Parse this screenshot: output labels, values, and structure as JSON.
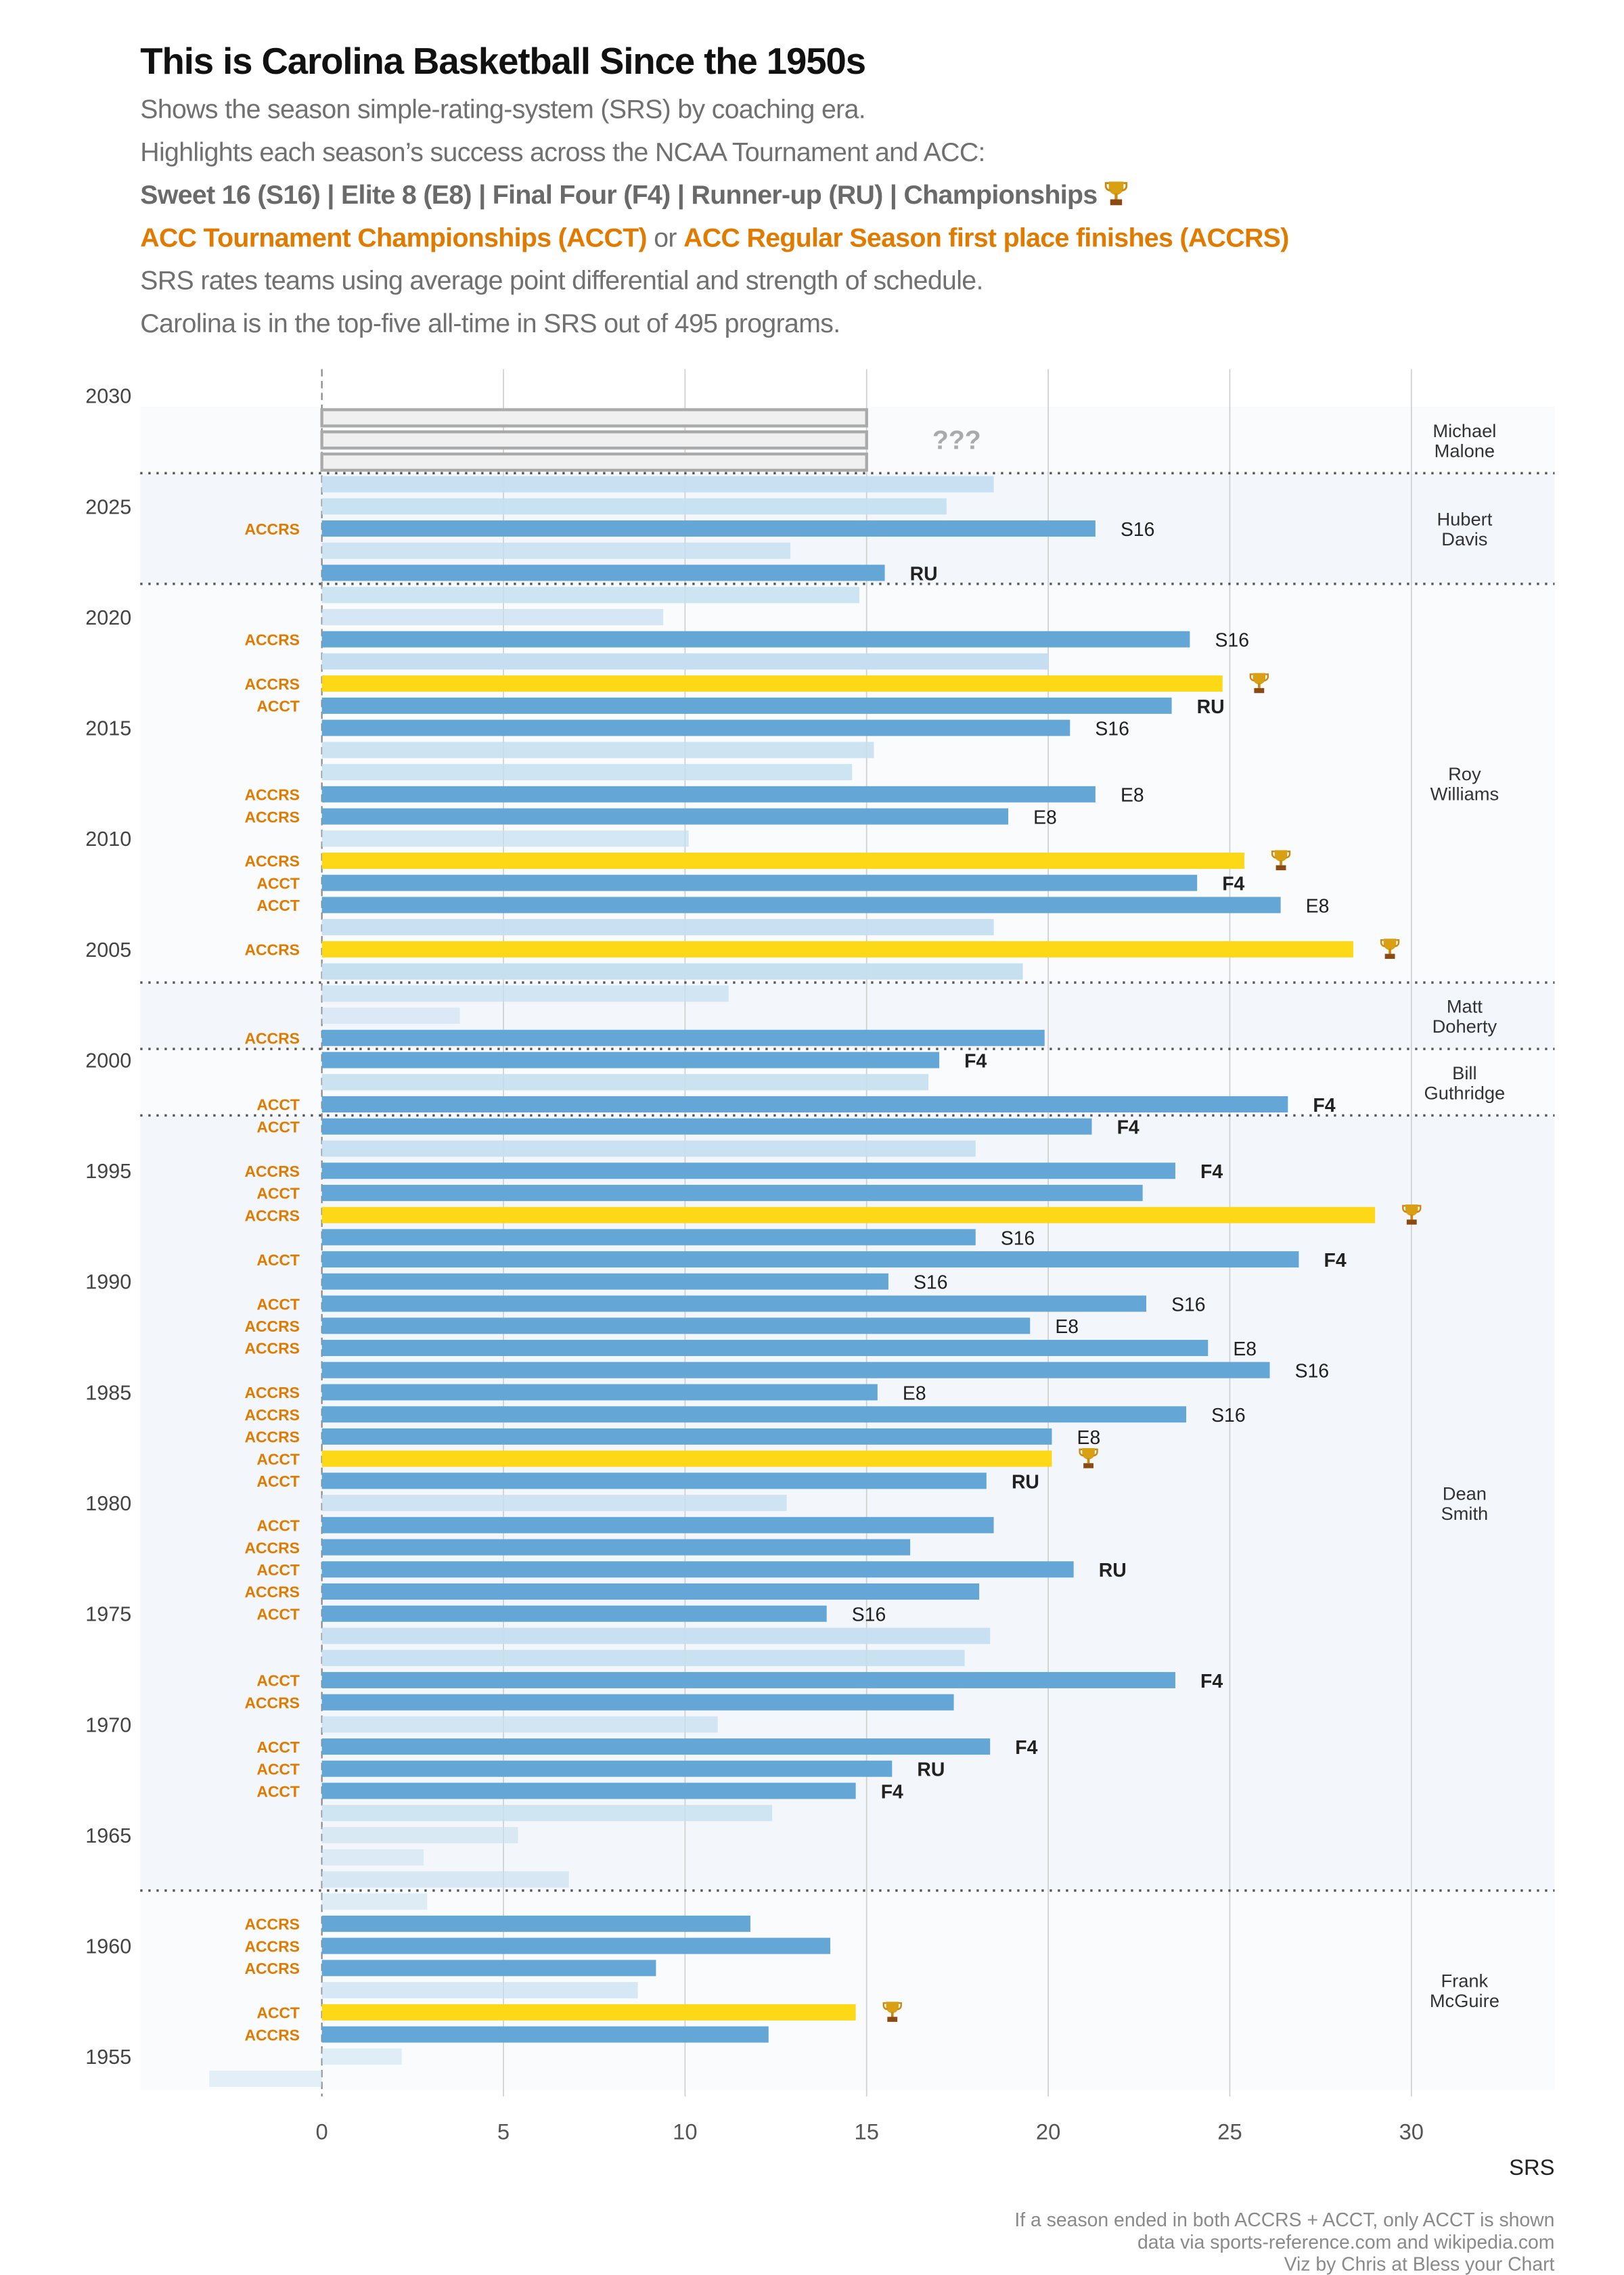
{
  "header": {
    "title": "This is Carolina Basketball Since the 1950s",
    "line1": "Shows the season simple-rating-system (SRS) by coaching era.",
    "line2": "Highlights each season’s success across the NCAA Tournament and ACC:",
    "line3": "Sweet 16 (S16) | Elite 8 (E8) | Final Four (F4) | Runner-up (RU) | Championships",
    "line4a": "ACC Tournament Championships (ACCT)",
    "line4b": " or ",
    "line4c": "ACC Regular Season first place finishes (ACCRS)",
    "line5": "SRS rates teams using average point differential and strength of schedule.",
    "line6": "Carolina is in the top-five all-time in SRS out of 495 programs."
  },
  "footer": {
    "note1": "If a season ended in both ACCRS + ACCT, only ACCT is shown",
    "note2": "data via sports-reference.com and wikipedia.com",
    "note3": "Viz by Chris at Bless your Chart"
  },
  "colors": {
    "bar": "#64a7d6",
    "champion": "#fcd817",
    "light": "#c6dff0",
    "acc": "#e07b00",
    "placeholder": "#f0f0f0"
  },
  "chart_data": {
    "type": "bar",
    "orientation": "horizontal",
    "xlabel": "SRS",
    "xlim": [
      -5,
      34
    ],
    "xticks": [
      0,
      5,
      10,
      15,
      20,
      25,
      30
    ],
    "yticks": [
      2030,
      2025,
      2020,
      2015,
      2010,
      2005,
      2000,
      1995,
      1990,
      1985,
      1980,
      1975,
      1970,
      1965,
      1960,
      1955
    ],
    "placeholder": {
      "years": [
        2029,
        2028,
        2027
      ],
      "value": 15,
      "label": "???"
    },
    "coaches": [
      {
        "name": "Michael\nMalone",
        "start": 2027,
        "end": 2029
      },
      {
        "name": "Hubert\nDavis",
        "start": 2022,
        "end": 2026
      },
      {
        "name": "Roy\nWilliams",
        "start": 2004,
        "end": 2021
      },
      {
        "name": "Matt\nDoherty",
        "start": 2001,
        "end": 2003
      },
      {
        "name": "Bill\nGuthridge",
        "start": 1998,
        "end": 2000
      },
      {
        "name": "Dean\nSmith",
        "start": 1963,
        "end": 1997
      },
      {
        "name": "Frank\nMcGuire",
        "start": 1954,
        "end": 1962
      }
    ],
    "seasons": [
      {
        "year": 2026,
        "srs": 18.5,
        "acc": "",
        "ncaa": "",
        "champ": false
      },
      {
        "year": 2025,
        "srs": 17.2,
        "acc": "",
        "ncaa": "",
        "champ": false
      },
      {
        "year": 2024,
        "srs": 21.3,
        "acc": "ACCRS",
        "ncaa": "S16",
        "champ": false
      },
      {
        "year": 2023,
        "srs": 12.9,
        "acc": "",
        "ncaa": "",
        "champ": false
      },
      {
        "year": 2022,
        "srs": 15.5,
        "acc": "",
        "ncaa": "RU",
        "champ": false
      },
      {
        "year": 2021,
        "srs": 14.8,
        "acc": "",
        "ncaa": "",
        "champ": false
      },
      {
        "year": 2020,
        "srs": 9.4,
        "acc": "",
        "ncaa": "",
        "champ": false
      },
      {
        "year": 2019,
        "srs": 23.9,
        "acc": "ACCRS",
        "ncaa": "S16",
        "champ": false
      },
      {
        "year": 2018,
        "srs": 20.0,
        "acc": "",
        "ncaa": "",
        "champ": false
      },
      {
        "year": 2017,
        "srs": 24.8,
        "acc": "ACCRS",
        "ncaa": "",
        "champ": true
      },
      {
        "year": 2016,
        "srs": 23.4,
        "acc": "ACCT",
        "ncaa": "RU",
        "champ": false
      },
      {
        "year": 2015,
        "srs": 20.6,
        "acc": "",
        "ncaa": "S16",
        "champ": false
      },
      {
        "year": 2014,
        "srs": 15.2,
        "acc": "",
        "ncaa": "",
        "champ": false
      },
      {
        "year": 2013,
        "srs": 14.6,
        "acc": "",
        "ncaa": "",
        "champ": false
      },
      {
        "year": 2012,
        "srs": 21.3,
        "acc": "ACCRS",
        "ncaa": "E8",
        "champ": false
      },
      {
        "year": 2011,
        "srs": 18.9,
        "acc": "ACCRS",
        "ncaa": "E8",
        "champ": false
      },
      {
        "year": 2010,
        "srs": 10.1,
        "acc": "",
        "ncaa": "",
        "champ": false
      },
      {
        "year": 2009,
        "srs": 25.4,
        "acc": "ACCRS",
        "ncaa": "",
        "champ": true
      },
      {
        "year": 2008,
        "srs": 24.1,
        "acc": "ACCT",
        "ncaa": "F4",
        "champ": false
      },
      {
        "year": 2007,
        "srs": 26.4,
        "acc": "ACCT",
        "ncaa": "E8",
        "champ": false
      },
      {
        "year": 2006,
        "srs": 18.5,
        "acc": "",
        "ncaa": "",
        "champ": false
      },
      {
        "year": 2005,
        "srs": 28.4,
        "acc": "ACCRS",
        "ncaa": "",
        "champ": true
      },
      {
        "year": 2004,
        "srs": 19.3,
        "acc": "",
        "ncaa": "",
        "champ": false
      },
      {
        "year": 2003,
        "srs": 11.2,
        "acc": "",
        "ncaa": "",
        "champ": false
      },
      {
        "year": 2002,
        "srs": 3.8,
        "acc": "",
        "ncaa": "",
        "champ": false
      },
      {
        "year": 2001,
        "srs": 19.9,
        "acc": "ACCRS",
        "ncaa": "",
        "champ": false
      },
      {
        "year": 2000,
        "srs": 17.0,
        "acc": "",
        "ncaa": "F4",
        "champ": false
      },
      {
        "year": 1999,
        "srs": 16.7,
        "acc": "",
        "ncaa": "",
        "champ": false
      },
      {
        "year": 1998,
        "srs": 26.6,
        "acc": "ACCT",
        "ncaa": "F4",
        "champ": false
      },
      {
        "year": 1997,
        "srs": 21.2,
        "acc": "ACCT",
        "ncaa": "F4",
        "champ": false
      },
      {
        "year": 1996,
        "srs": 18.0,
        "acc": "",
        "ncaa": "",
        "champ": false
      },
      {
        "year": 1995,
        "srs": 23.5,
        "acc": "ACCRS",
        "ncaa": "F4",
        "champ": false
      },
      {
        "year": 1994,
        "srs": 22.6,
        "acc": "ACCT",
        "ncaa": "",
        "champ": false
      },
      {
        "year": 1993,
        "srs": 29.0,
        "acc": "ACCRS",
        "ncaa": "",
        "champ": true
      },
      {
        "year": 1992,
        "srs": 18.0,
        "acc": "",
        "ncaa": "S16",
        "champ": false
      },
      {
        "year": 1991,
        "srs": 26.9,
        "acc": "ACCT",
        "ncaa": "F4",
        "champ": false
      },
      {
        "year": 1990,
        "srs": 15.6,
        "acc": "",
        "ncaa": "S16",
        "champ": false
      },
      {
        "year": 1989,
        "srs": 22.7,
        "acc": "ACCT",
        "ncaa": "S16",
        "champ": false
      },
      {
        "year": 1988,
        "srs": 19.5,
        "acc": "ACCRS",
        "ncaa": "E8",
        "champ": false
      },
      {
        "year": 1987,
        "srs": 24.4,
        "acc": "ACCRS",
        "ncaa": "E8",
        "champ": false
      },
      {
        "year": 1986,
        "srs": 26.1,
        "acc": "",
        "ncaa": "S16",
        "champ": false
      },
      {
        "year": 1985,
        "srs": 15.3,
        "acc": "ACCRS",
        "ncaa": "E8",
        "champ": false
      },
      {
        "year": 1984,
        "srs": 23.8,
        "acc": "ACCRS",
        "ncaa": "S16",
        "champ": false
      },
      {
        "year": 1983,
        "srs": 20.1,
        "acc": "ACCRS",
        "ncaa": "E8",
        "champ": false
      },
      {
        "year": 1982,
        "srs": 20.1,
        "acc": "ACCT",
        "ncaa": "",
        "champ": true
      },
      {
        "year": 1981,
        "srs": 18.3,
        "acc": "ACCT",
        "ncaa": "RU",
        "champ": false
      },
      {
        "year": 1980,
        "srs": 12.8,
        "acc": "",
        "ncaa": "",
        "champ": false
      },
      {
        "year": 1979,
        "srs": 18.5,
        "acc": "ACCT",
        "ncaa": "",
        "champ": false
      },
      {
        "year": 1978,
        "srs": 16.2,
        "acc": "ACCRS",
        "ncaa": "",
        "champ": false
      },
      {
        "year": 1977,
        "srs": 20.7,
        "acc": "ACCT",
        "ncaa": "RU",
        "champ": false
      },
      {
        "year": 1976,
        "srs": 18.1,
        "acc": "ACCRS",
        "ncaa": "",
        "champ": false
      },
      {
        "year": 1975,
        "srs": 13.9,
        "acc": "ACCT",
        "ncaa": "S16",
        "champ": false
      },
      {
        "year": 1974,
        "srs": 18.4,
        "acc": "",
        "ncaa": "",
        "champ": false
      },
      {
        "year": 1973,
        "srs": 17.7,
        "acc": "",
        "ncaa": "",
        "champ": false
      },
      {
        "year": 1972,
        "srs": 23.5,
        "acc": "ACCT",
        "ncaa": "F4",
        "champ": false
      },
      {
        "year": 1971,
        "srs": 17.4,
        "acc": "ACCRS",
        "ncaa": "",
        "champ": false
      },
      {
        "year": 1970,
        "srs": 10.9,
        "acc": "",
        "ncaa": "",
        "champ": false
      },
      {
        "year": 1969,
        "srs": 18.4,
        "acc": "ACCT",
        "ncaa": "F4",
        "champ": false
      },
      {
        "year": 1968,
        "srs": 15.7,
        "acc": "ACCT",
        "ncaa": "RU",
        "champ": false
      },
      {
        "year": 1967,
        "srs": 14.7,
        "acc": "ACCT",
        "ncaa": "F4",
        "champ": false
      },
      {
        "year": 1966,
        "srs": 12.4,
        "acc": "",
        "ncaa": "",
        "champ": false
      },
      {
        "year": 1965,
        "srs": 5.4,
        "acc": "",
        "ncaa": "",
        "champ": false
      },
      {
        "year": 1964,
        "srs": 2.8,
        "acc": "",
        "ncaa": "",
        "champ": false
      },
      {
        "year": 1963,
        "srs": 6.8,
        "acc": "",
        "ncaa": "",
        "champ": false
      },
      {
        "year": 1962,
        "srs": 2.9,
        "acc": "",
        "ncaa": "",
        "champ": false
      },
      {
        "year": 1961,
        "srs": 11.8,
        "acc": "ACCRS",
        "ncaa": "",
        "champ": false
      },
      {
        "year": 1960,
        "srs": 14.0,
        "acc": "ACCRS",
        "ncaa": "",
        "champ": false
      },
      {
        "year": 1959,
        "srs": 9.2,
        "acc": "ACCRS",
        "ncaa": "",
        "champ": false
      },
      {
        "year": 1958,
        "srs": 8.7,
        "acc": "",
        "ncaa": "",
        "champ": false
      },
      {
        "year": 1957,
        "srs": 14.7,
        "acc": "ACCT",
        "ncaa": "",
        "champ": true
      },
      {
        "year": 1956,
        "srs": 12.3,
        "acc": "ACCRS",
        "ncaa": "",
        "champ": false
      },
      {
        "year": 1955,
        "srs": 2.2,
        "acc": "",
        "ncaa": "",
        "champ": false
      },
      {
        "year": 1954,
        "srs": -3.1,
        "acc": "",
        "ncaa": "",
        "champ": false
      }
    ]
  }
}
